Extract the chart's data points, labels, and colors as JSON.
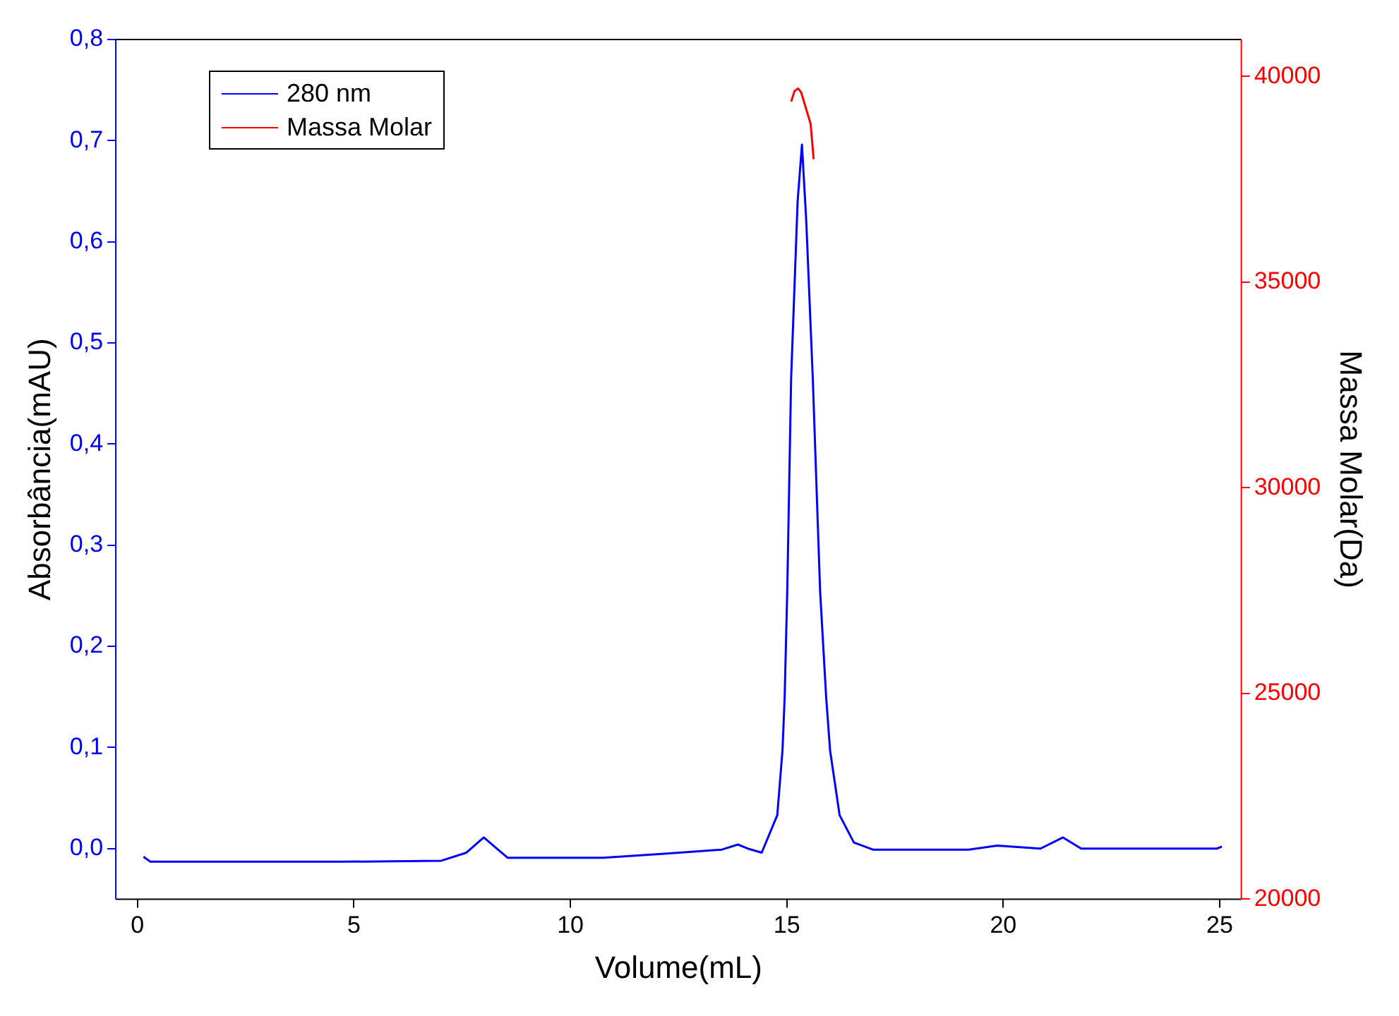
{
  "chart_data": {
    "type": "line",
    "xlabel": "Volume(mL)",
    "ylabel": "Absorbância(mAU)",
    "y2label": "Massa Molar(Da)",
    "xlim": [
      -0.5,
      25.5
    ],
    "xticks": [
      0,
      5,
      10,
      15,
      20,
      25
    ],
    "ylim": [
      -0.05,
      0.8
    ],
    "yticks": [
      {
        "value": 0,
        "label": "0,0"
      },
      {
        "value": 0.1,
        "label": "0,1"
      },
      {
        "value": 0.2,
        "label": "0,2"
      },
      {
        "value": 0.3,
        "label": "0,3"
      },
      {
        "value": 0.4,
        "label": "0,4"
      },
      {
        "value": 0.5,
        "label": "0,5"
      },
      {
        "value": 0.6,
        "label": "0,6"
      },
      {
        "value": 0.7,
        "label": "0,7"
      },
      {
        "value": 0.8,
        "label": "0,8"
      }
    ],
    "y2lim": [
      20000,
      40900
    ],
    "y2ticks": [
      20000,
      25000,
      30000,
      35000,
      40000
    ],
    "grid": false,
    "legend": "top left",
    "marker": "none",
    "line_style": "solid",
    "series": [
      {
        "name": "280 nm",
        "color": "#0000ff",
        "x": [
          0.14,
          0.3,
          4.75,
          7.02,
          7.6,
          8.0,
          8.3,
          8.55,
          10.75,
          12.17,
          13.5,
          13.87,
          14.1,
          14.42,
          14.78,
          14.9,
          14.95,
          15.01,
          15.1,
          15.25,
          15.35,
          15.45,
          15.6,
          15.77,
          15.91,
          16.0,
          16.22,
          16.55,
          16.99,
          19.2,
          19.86,
          20.86,
          21.38,
          21.8,
          24.93,
          25.05
        ],
        "values": [
          -0.008,
          -0.013,
          -0.013,
          -0.012,
          -0.004,
          0.011,
          0.0,
          -0.009,
          -0.009,
          -0.005,
          -0.001,
          0.004,
          0.0,
          -0.004,
          0.033,
          0.097,
          0.149,
          0.254,
          0.465,
          0.64,
          0.696,
          0.62,
          0.465,
          0.254,
          0.149,
          0.097,
          0.033,
          0.006,
          -0.001,
          -0.001,
          0.003,
          0.0,
          0.011,
          0.0,
          0.0,
          0.002
        ]
      },
      {
        "name": "Massa Molar",
        "color": "#ff0000",
        "axis": "y2",
        "x": [
          15.1,
          15.18,
          15.26,
          15.33,
          15.45,
          15.55,
          15.62
        ],
        "values": [
          39390,
          39650,
          39710,
          39620,
          39200,
          38850,
          37990
        ]
      }
    ]
  }
}
